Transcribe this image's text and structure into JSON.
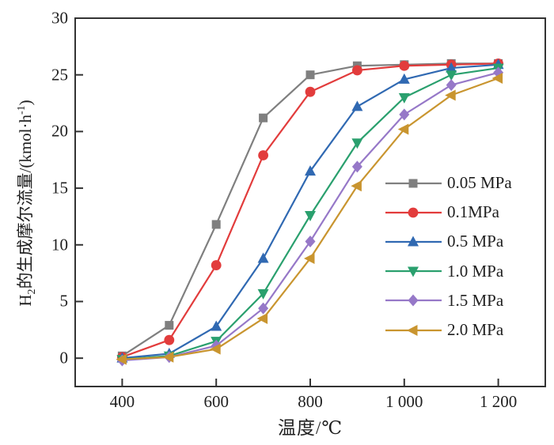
{
  "chart_data": {
    "type": "line",
    "title": "",
    "xlabel": "温度/℃",
    "ylabel": "H₂的生成摩尔流量/(kmol·h⁻¹)",
    "ylabel_parts": {
      "h": "H",
      "sub": "2",
      "main": "的生成摩尔流量/(kmol·h",
      "sup": "-1",
      "close": ")"
    },
    "x": [
      400,
      500,
      600,
      700,
      800,
      900,
      1000,
      1100,
      1200
    ],
    "xticks": [
      400,
      600,
      800,
      1000,
      1200
    ],
    "xtick_labels": [
      "400",
      "600",
      "800",
      "1 000",
      "1 200"
    ],
    "yticks": [
      0,
      5,
      10,
      15,
      20,
      25,
      30
    ],
    "ytick_labels": [
      "0",
      "5",
      "10",
      "15",
      "20",
      "25",
      "30"
    ],
    "xlim": [
      300,
      1300
    ],
    "ylim": [
      -2.5,
      30
    ],
    "grid": false,
    "legend_position": "inside-right",
    "axis_color": "#333333",
    "series": [
      {
        "name": "0.05 MPa",
        "color": "#7f7f7f",
        "marker": "square",
        "values": [
          0.2,
          2.9,
          11.8,
          21.2,
          25.0,
          25.8,
          25.9,
          26.0,
          26.0
        ]
      },
      {
        "name": "0.1MPa",
        "color": "#e23c3c",
        "marker": "circle",
        "values": [
          0.1,
          1.6,
          8.2,
          17.9,
          23.5,
          25.4,
          25.8,
          25.9,
          26.0
        ]
      },
      {
        "name": "0.5 MPa",
        "color": "#3069b2",
        "marker": "triangle-up",
        "values": [
          0.0,
          0.4,
          2.8,
          8.8,
          16.5,
          22.2,
          24.6,
          25.6,
          25.9
        ]
      },
      {
        "name": "1.0 MPa",
        "color": "#2aa06e",
        "marker": "triangle-down",
        "values": [
          -0.1,
          0.2,
          1.5,
          5.7,
          12.6,
          19.0,
          23.0,
          25.0,
          25.6
        ]
      },
      {
        "name": "1.5 MPa",
        "color": "#9678c8",
        "marker": "diamond",
        "values": [
          -0.2,
          0.1,
          1.1,
          4.4,
          10.3,
          16.9,
          21.5,
          24.1,
          25.2
        ]
      },
      {
        "name": "2.0 MPa",
        "color": "#c9952f",
        "marker": "triangle-left",
        "values": [
          -0.1,
          0.1,
          0.8,
          3.5,
          8.8,
          15.2,
          20.2,
          23.2,
          24.7
        ]
      }
    ]
  }
}
